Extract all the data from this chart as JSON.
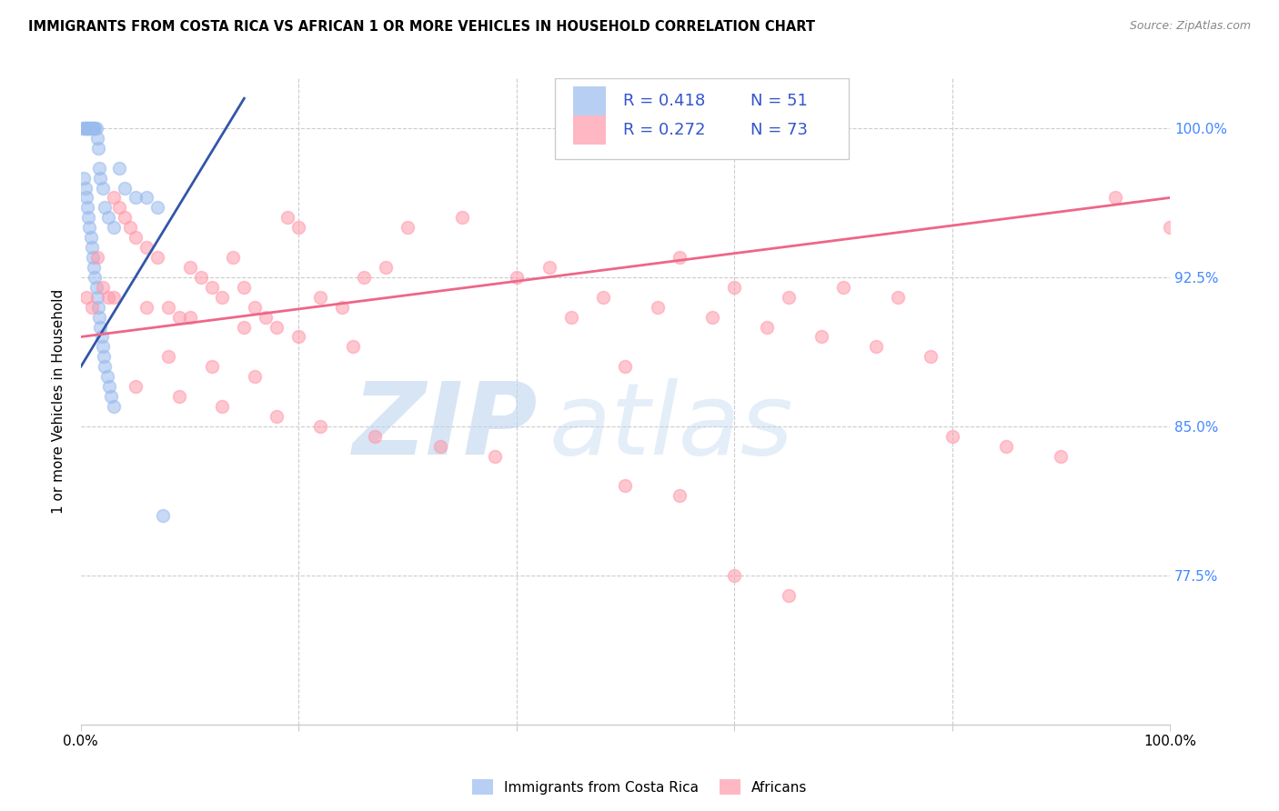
{
  "title": "IMMIGRANTS FROM COSTA RICA VS AFRICAN 1 OR MORE VEHICLES IN HOUSEHOLD CORRELATION CHART",
  "source": "Source: ZipAtlas.com",
  "ylabel": "1 or more Vehicles in Household",
  "right_yticklabels": [
    "77.5%",
    "85.0%",
    "92.5%",
    "100.0%"
  ],
  "right_yticks": [
    77.5,
    85.0,
    92.5,
    100.0
  ],
  "watermark_zip": "ZIP",
  "watermark_atlas": "atlas",
  "legend_blue_r": "R = 0.418",
  "legend_blue_n": "N = 51",
  "legend_pink_r": "R = 0.272",
  "legend_pink_n": "N = 73",
  "legend_label_blue": "Immigrants from Costa Rica",
  "legend_label_pink": "Africans",
  "blue_color": "#99BBEE",
  "pink_color": "#FF99AA",
  "blue_line_color": "#3355AA",
  "pink_line_color": "#EE6688",
  "ylim": [
    70.0,
    102.5
  ],
  "xlim": [
    0.0,
    100.0
  ],
  "blue_scatter_x": [
    0.2,
    0.3,
    0.4,
    0.5,
    0.6,
    0.7,
    0.8,
    0.9,
    1.0,
    1.1,
    1.2,
    1.3,
    1.4,
    1.5,
    1.6,
    1.7,
    1.8,
    2.0,
    2.2,
    2.5,
    3.0,
    3.5,
    4.0,
    5.0,
    6.0,
    7.0,
    0.3,
    0.4,
    0.5,
    0.6,
    0.7,
    0.8,
    0.9,
    1.0,
    1.1,
    1.2,
    1.3,
    1.4,
    1.5,
    1.6,
    1.7,
    1.8,
    1.9,
    2.0,
    2.1,
    2.2,
    2.4,
    2.6,
    2.8,
    3.0,
    7.5
  ],
  "blue_scatter_y": [
    100.0,
    100.0,
    100.0,
    100.0,
    100.0,
    100.0,
    100.0,
    100.0,
    100.0,
    100.0,
    100.0,
    100.0,
    100.0,
    99.5,
    99.0,
    98.0,
    97.5,
    97.0,
    96.0,
    95.5,
    95.0,
    98.0,
    97.0,
    96.5,
    96.5,
    96.0,
    97.5,
    97.0,
    96.5,
    96.0,
    95.5,
    95.0,
    94.5,
    94.0,
    93.5,
    93.0,
    92.5,
    92.0,
    91.5,
    91.0,
    90.5,
    90.0,
    89.5,
    89.0,
    88.5,
    88.0,
    87.5,
    87.0,
    86.5,
    86.0,
    80.5
  ],
  "pink_scatter_x": [
    0.5,
    1.0,
    1.5,
    2.0,
    2.5,
    3.0,
    3.5,
    4.0,
    4.5,
    5.0,
    6.0,
    7.0,
    8.0,
    9.0,
    10.0,
    11.0,
    12.0,
    13.0,
    14.0,
    15.0,
    16.0,
    17.0,
    18.0,
    19.0,
    20.0,
    22.0,
    24.0,
    26.0,
    28.0,
    30.0,
    35.0,
    40.0,
    45.0,
    50.0,
    55.0,
    60.0,
    65.0,
    70.0,
    75.0,
    80.0,
    85.0,
    90.0,
    95.0,
    100.0,
    3.0,
    6.0,
    10.0,
    15.0,
    20.0,
    25.0,
    8.0,
    12.0,
    16.0,
    5.0,
    9.0,
    13.0,
    18.0,
    22.0,
    27.0,
    33.0,
    38.0,
    43.0,
    48.0,
    53.0,
    58.0,
    63.0,
    68.0,
    73.0,
    78.0,
    50.0,
    55.0,
    60.0,
    65.0
  ],
  "pink_scatter_y": [
    91.5,
    91.0,
    93.5,
    92.0,
    91.5,
    96.5,
    96.0,
    95.5,
    95.0,
    94.5,
    94.0,
    93.5,
    91.0,
    90.5,
    93.0,
    92.5,
    92.0,
    91.5,
    93.5,
    92.0,
    91.0,
    90.5,
    90.0,
    95.5,
    95.0,
    91.5,
    91.0,
    92.5,
    93.0,
    95.0,
    95.5,
    92.5,
    90.5,
    88.0,
    93.5,
    92.0,
    91.5,
    92.0,
    91.5,
    84.5,
    84.0,
    83.5,
    96.5,
    95.0,
    91.5,
    91.0,
    90.5,
    90.0,
    89.5,
    89.0,
    88.5,
    88.0,
    87.5,
    87.0,
    86.5,
    86.0,
    85.5,
    85.0,
    84.5,
    84.0,
    83.5,
    93.0,
    91.5,
    91.0,
    90.5,
    90.0,
    89.5,
    89.0,
    88.5,
    82.0,
    81.5,
    77.5,
    76.5
  ],
  "blue_line_x0": 0.0,
  "blue_line_x1": 15.0,
  "blue_line_y0": 88.0,
  "blue_line_y1": 101.5,
  "pink_line_x0": 0.0,
  "pink_line_x1": 100.0,
  "pink_line_y0": 89.5,
  "pink_line_y1": 96.5
}
